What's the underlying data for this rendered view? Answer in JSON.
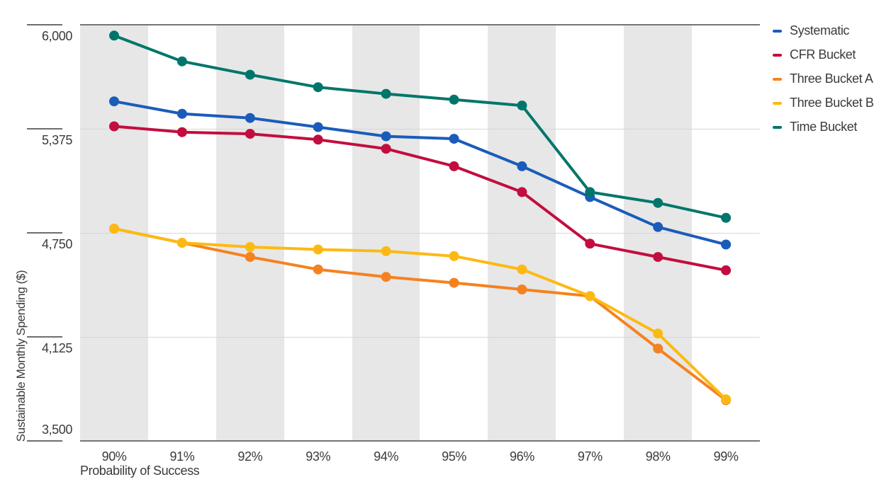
{
  "chart_data": {
    "type": "line",
    "x_axis": {
      "label": "Probability of Success",
      "categories": [
        "90%",
        "91%",
        "92%",
        "93%",
        "94%",
        "95%",
        "96%",
        "97%",
        "98%",
        "99%"
      ]
    },
    "y_axis": {
      "label": "Sustainable Monthly Spending ($)",
      "ticks": [
        6000,
        5375,
        4750,
        4125,
        3500
      ],
      "tick_labels": [
        "6,000",
        "5,375",
        "4,750",
        "4,125",
        "3,500"
      ],
      "range": [
        3500,
        6000
      ]
    },
    "series": [
      {
        "name": "Systematic",
        "color": "#1a5cba",
        "values": [
          5540,
          5465,
          5440,
          5385,
          5330,
          5315,
          5150,
          4965,
          4785,
          4680
        ]
      },
      {
        "name": "CFR Bucket",
        "color": "#c30d3e",
        "values": [
          5390,
          5355,
          5345,
          5310,
          5255,
          5150,
          4995,
          4685,
          4605,
          4525
        ]
      },
      {
        "name": "Three Bucket A",
        "color": "#f58220",
        "values": [
          4775,
          4690,
          4605,
          4530,
          4485,
          4450,
          4410,
          4370,
          4055,
          3745
        ]
      },
      {
        "name": "Three Bucket B",
        "color": "#fdb913",
        "values": [
          4775,
          4690,
          4665,
          4650,
          4640,
          4610,
          4530,
          4370,
          4145,
          3750
        ]
      },
      {
        "name": "Time Bucket",
        "color": "#00766b",
        "values": [
          5935,
          5780,
          5700,
          5625,
          5585,
          5550,
          5515,
          4995,
          4930,
          4840
        ]
      }
    ],
    "legend_position": "top-right",
    "grid": "horizontal",
    "background_bands": {
      "color": "#e7e7e7",
      "on_categories": [
        "90%",
        "92%",
        "94%",
        "96%",
        "98%"
      ]
    },
    "marker": "circle",
    "band_color": "#e7e7e7",
    "gridline_color": "#d6d6d6",
    "axis_line_color": "#757575"
  }
}
